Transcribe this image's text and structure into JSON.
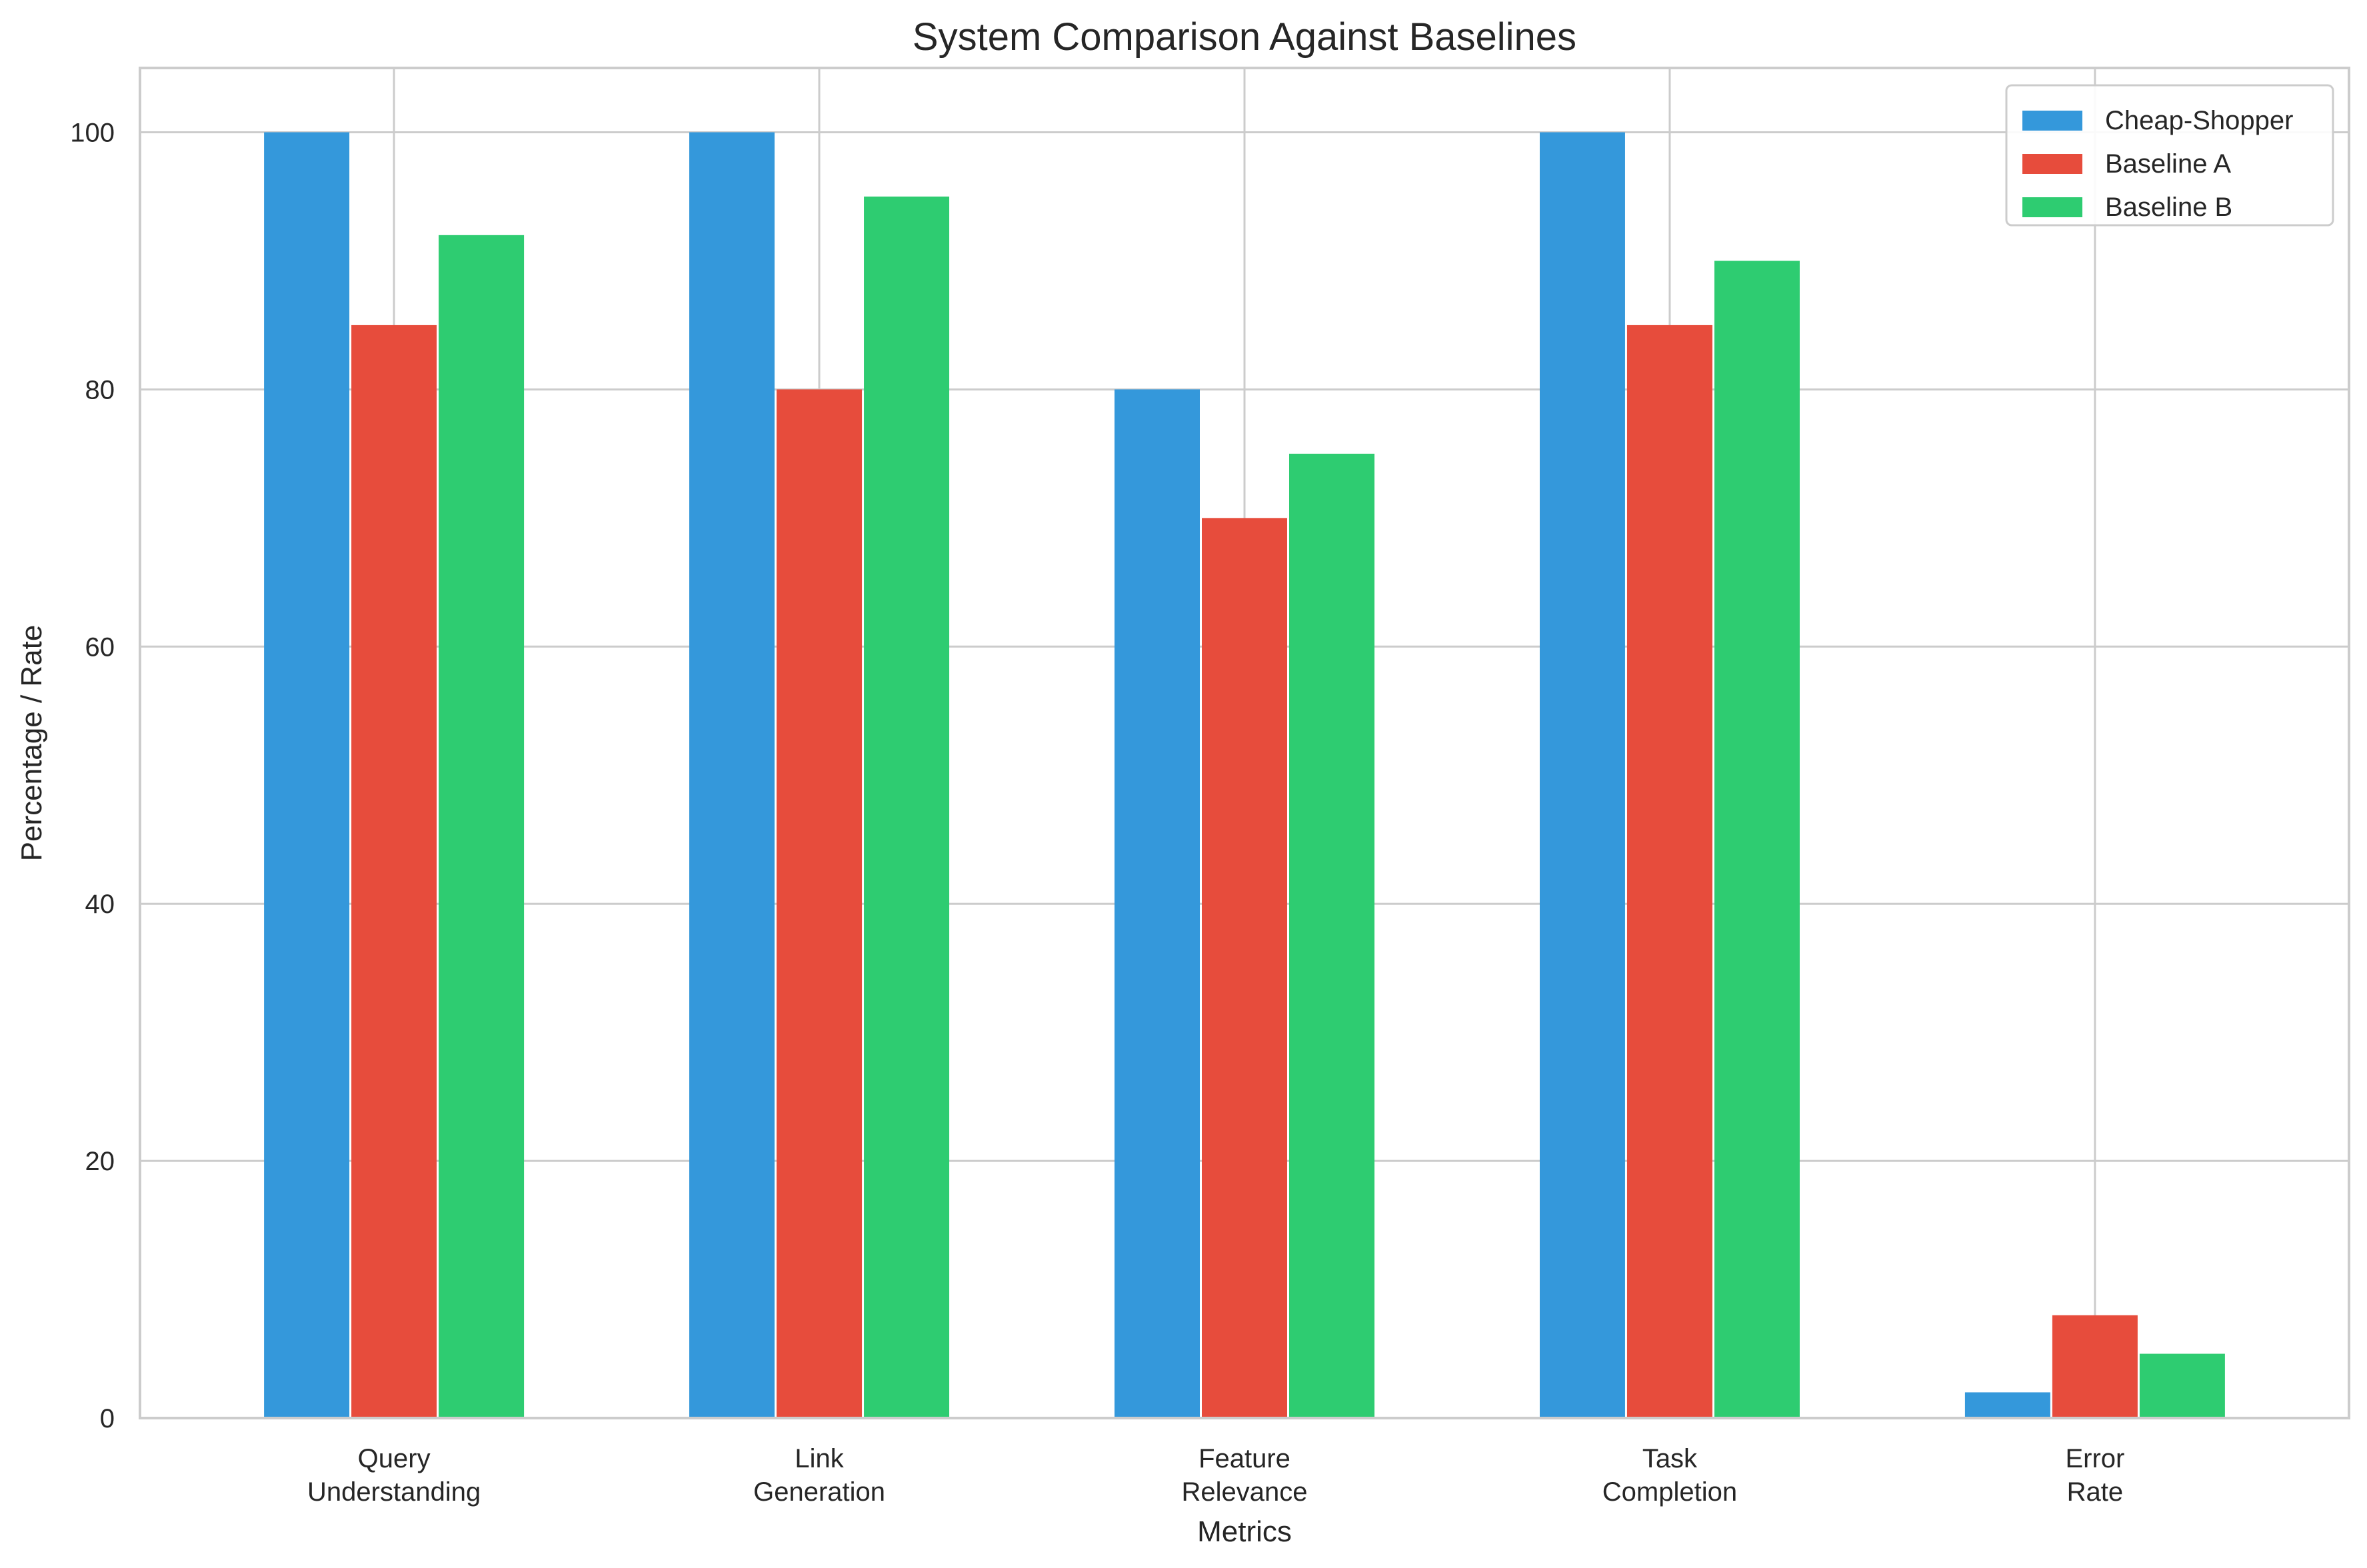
{
  "chart_data": {
    "type": "bar",
    "title": "System Comparison Against Baselines",
    "xlabel": "Metrics",
    "ylabel": "Percentage / Rate",
    "categories": [
      [
        "Query",
        "Understanding"
      ],
      [
        "Link",
        "Generation"
      ],
      [
        "Feature",
        "Relevance"
      ],
      [
        "Task",
        "Completion"
      ],
      [
        "Error",
        "Rate"
      ]
    ],
    "series": [
      {
        "name": "Cheap-Shopper",
        "color": "#3498db",
        "values": [
          100,
          100,
          80,
          100,
          2
        ]
      },
      {
        "name": "Baseline A",
        "color": "#e74c3c",
        "values": [
          85,
          80,
          70,
          85,
          8
        ]
      },
      {
        "name": "Baseline B",
        "color": "#2ecc71",
        "values": [
          92,
          95,
          75,
          90,
          5
        ]
      }
    ],
    "ylim": [
      0,
      105
    ],
    "yticks": [
      0,
      20,
      40,
      60,
      80,
      100
    ],
    "grid": true,
    "legend_position": "top-right"
  }
}
